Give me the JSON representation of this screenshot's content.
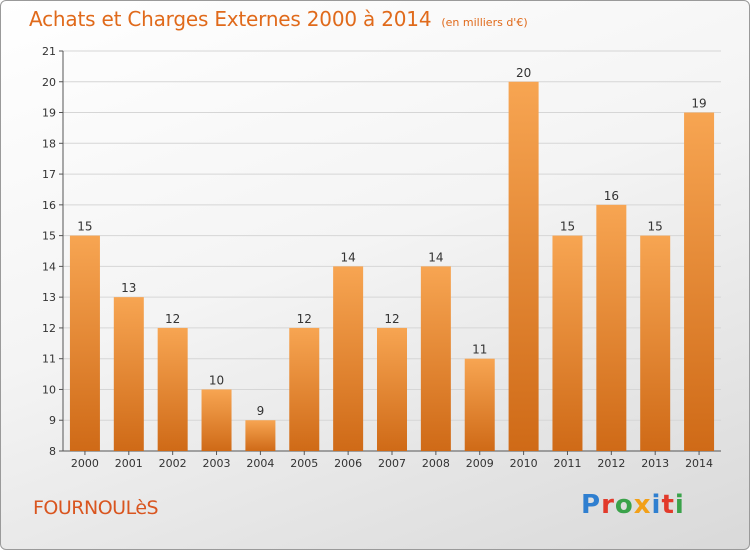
{
  "header": {
    "title": "Achats et Charges Externes 2000 à 2014",
    "subtitle": "(en milliers d'€)"
  },
  "footer": {
    "commune": "FOURNOULèS",
    "logo": [
      "P",
      "r",
      "o",
      "x",
      "i",
      "t",
      "i"
    ]
  },
  "colors": {
    "bar_light": "#f7a552",
    "bar_dark": "#cf6a17",
    "title": "#e06a1b",
    "grid": "#d6d6d6"
  },
  "chart_data": {
    "type": "bar",
    "categories": [
      "2000",
      "2001",
      "2002",
      "2003",
      "2004",
      "2005",
      "2006",
      "2007",
      "2008",
      "2009",
      "2010",
      "2011",
      "2012",
      "2013",
      "2014"
    ],
    "values": [
      15,
      13,
      12,
      10,
      9,
      12,
      14,
      12,
      14,
      11,
      20,
      15,
      16,
      15,
      19
    ],
    "title": "Achats et Charges Externes 2000 à 2014",
    "subtitle": "(en milliers d'€)",
    "xlabel": "",
    "ylabel": "",
    "ylim": [
      8,
      21
    ],
    "yticks": [
      8,
      9,
      10,
      11,
      12,
      13,
      14,
      15,
      16,
      17,
      18,
      19,
      20,
      21
    ],
    "grid": true,
    "data_labels": true
  }
}
